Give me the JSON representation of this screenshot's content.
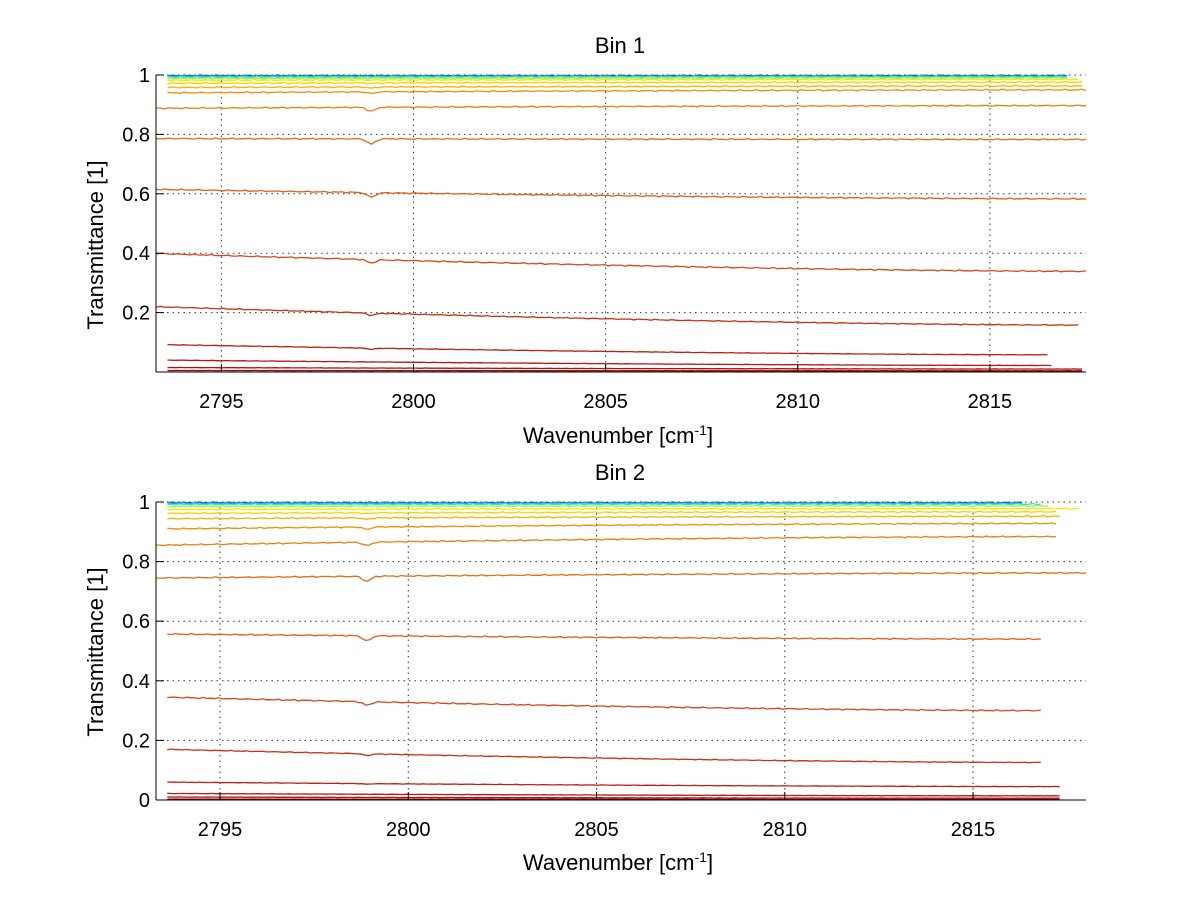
{
  "chart_data": [
    {
      "type": "line",
      "title": "Bin 1",
      "xlabel": "Wavenumber [cm",
      "xlabel_sup": "-1",
      "xlabel_suffix": "]",
      "ylabel": "Transmittance [1]",
      "xlim": [
        2793.3,
        2817.5
      ],
      "ylim": [
        0,
        1
      ],
      "xticks": [
        2795,
        2800,
        2805,
        2810,
        2815
      ],
      "yticks": [
        0.2,
        0.4,
        0.6,
        0.8,
        1
      ],
      "ytick_labels": [
        "0.2",
        "0.4",
        "0.6",
        "0.8",
        "1"
      ],
      "grid": true,
      "dip_at": 2798.9,
      "series": [
        {
          "color": "#0050ff",
          "x": [
            2793.6,
            2817.0
          ],
          "y": [
            0.998,
            0.998
          ],
          "dip": 0
        },
        {
          "color": "#00b4dc",
          "x": [
            2793.6,
            2817.0
          ],
          "y": [
            0.996,
            0.996
          ],
          "dip": 0
        },
        {
          "color": "#40e0b0",
          "x": [
            2793.6,
            2817.0
          ],
          "y": [
            0.993,
            0.994
          ],
          "dip": 0
        },
        {
          "color": "#a0f060",
          "x": [
            2793.6,
            2817.0
          ],
          "y": [
            0.988,
            0.99
          ],
          "dip": 0
        },
        {
          "color": "#e8f000",
          "x": [
            2793.6,
            2817.3
          ],
          "y": [
            0.982,
            0.985
          ],
          "dip": 0
        },
        {
          "color": "#ffd000",
          "x": [
            2793.6,
            2817.4
          ],
          "y": [
            0.972,
            0.976
          ],
          "dip": 0.002
        },
        {
          "color": "#ffb000",
          "x": [
            2793.6,
            2817.4
          ],
          "y": [
            0.958,
            0.963
          ],
          "dip": 0.004
        },
        {
          "color": "#f09000",
          "x": [
            2793.6,
            2817.5
          ],
          "y": [
            0.94,
            0.95
          ],
          "dip": 0.006
        },
        {
          "color": "#e88010",
          "x": [
            2793.3,
            2817.5
          ],
          "y": [
            0.888,
            0.897
          ],
          "dip": 0.014
        },
        {
          "color": "#e07010",
          "x": [
            2793.3,
            2817.5
          ],
          "y": [
            0.786,
            0.783
          ],
          "dip": 0.018
        },
        {
          "color": "#e06018",
          "x": [
            2793.3,
            2817.5
          ],
          "y": [
            0.615,
            0.583
          ],
          "dip": 0.016
        },
        {
          "color": "#d84818",
          "x": [
            2793.3,
            2817.5
          ],
          "y": [
            0.399,
            0.339
          ],
          "dip": 0.012
        },
        {
          "color": "#cc3010",
          "x": [
            2793.3,
            2817.3
          ],
          "y": [
            0.22,
            0.158
          ],
          "dip": 0.008
        },
        {
          "color": "#c02010",
          "x": [
            2793.6,
            2816.5
          ],
          "y": [
            0.092,
            0.058
          ],
          "dip": 0.004
        },
        {
          "color": "#b81810",
          "x": [
            2793.6,
            2816.6
          ],
          "y": [
            0.04,
            0.022
          ],
          "dip": 0
        },
        {
          "color": "#b01010",
          "x": [
            2793.6,
            2817.4
          ],
          "y": [
            0.015,
            0.01
          ],
          "dip": 0
        },
        {
          "color": "#a00808",
          "x": [
            2793.6,
            2817.4
          ],
          "y": [
            0.005,
            0.004
          ],
          "dip": 0
        }
      ]
    },
    {
      "type": "line",
      "title": "Bin 2",
      "xlabel": "Wavenumber [cm",
      "xlabel_sup": "-1",
      "xlabel_suffix": "]",
      "ylabel": "Transmittance [1]",
      "xlim": [
        2793.3,
        2818.0
      ],
      "ylim": [
        0,
        1
      ],
      "xticks": [
        2795,
        2800,
        2805,
        2810,
        2815
      ],
      "yticks": [
        0,
        0.2,
        0.4,
        0.6,
        0.8,
        1
      ],
      "ytick_labels": [
        "0",
        "0.2",
        "0.4",
        "0.6",
        "0.8",
        "1"
      ],
      "grid": true,
      "dip_at": 2798.9,
      "series": [
        {
          "color": "#0050ff",
          "x": [
            2793.6,
            2816.3
          ],
          "y": [
            0.998,
            0.998
          ],
          "dip": 0
        },
        {
          "color": "#00b4dc",
          "x": [
            2793.6,
            2816.3
          ],
          "y": [
            0.996,
            0.996
          ],
          "dip": 0
        },
        {
          "color": "#40e0b0",
          "x": [
            2793.6,
            2816.8
          ],
          "y": [
            0.992,
            0.993
          ],
          "dip": 0
        },
        {
          "color": "#a0f060",
          "x": [
            2793.6,
            2817.0
          ],
          "y": [
            0.985,
            0.987
          ],
          "dip": 0
        },
        {
          "color": "#e8f000",
          "x": [
            2793.6,
            2817.8
          ],
          "y": [
            0.975,
            0.978
          ],
          "dip": 0.002
        },
        {
          "color": "#ffd000",
          "x": [
            2793.6,
            2817.2
          ],
          "y": [
            0.962,
            0.967
          ],
          "dip": 0.003
        },
        {
          "color": "#ffb000",
          "x": [
            2793.6,
            2817.3
          ],
          "y": [
            0.944,
            0.952
          ],
          "dip": 0.005
        },
        {
          "color": "#f09000",
          "x": [
            2793.6,
            2817.2
          ],
          "y": [
            0.91,
            0.928
          ],
          "dip": 0.008
        },
        {
          "color": "#e88010",
          "x": [
            2793.3,
            2817.2
          ],
          "y": [
            0.855,
            0.884
          ],
          "dip": 0.012
        },
        {
          "color": "#e07010",
          "x": [
            2793.3,
            2818.0
          ],
          "y": [
            0.745,
            0.762
          ],
          "dip": 0.018
        },
        {
          "color": "#e06018",
          "x": [
            2793.6,
            2816.8
          ],
          "y": [
            0.557,
            0.54
          ],
          "dip": 0.018
        },
        {
          "color": "#d84818",
          "x": [
            2793.6,
            2816.8
          ],
          "y": [
            0.345,
            0.3
          ],
          "dip": 0.012
        },
        {
          "color": "#cc3010",
          "x": [
            2793.6,
            2816.8
          ],
          "y": [
            0.17,
            0.126
          ],
          "dip": 0.006
        },
        {
          "color": "#c02010",
          "x": [
            2793.6,
            2817.3
          ],
          "y": [
            0.06,
            0.045
          ],
          "dip": 0.002
        },
        {
          "color": "#b81810",
          "x": [
            2793.6,
            2817.3
          ],
          "y": [
            0.022,
            0.014
          ],
          "dip": 0
        },
        {
          "color": "#b01010",
          "x": [
            2793.6,
            2817.3
          ],
          "y": [
            0.01,
            0.006
          ],
          "dip": 0
        },
        {
          "color": "#a00808",
          "x": [
            2793.6,
            2817.3
          ],
          "y": [
            0.003,
            0.002
          ],
          "dip": 0
        }
      ]
    }
  ]
}
